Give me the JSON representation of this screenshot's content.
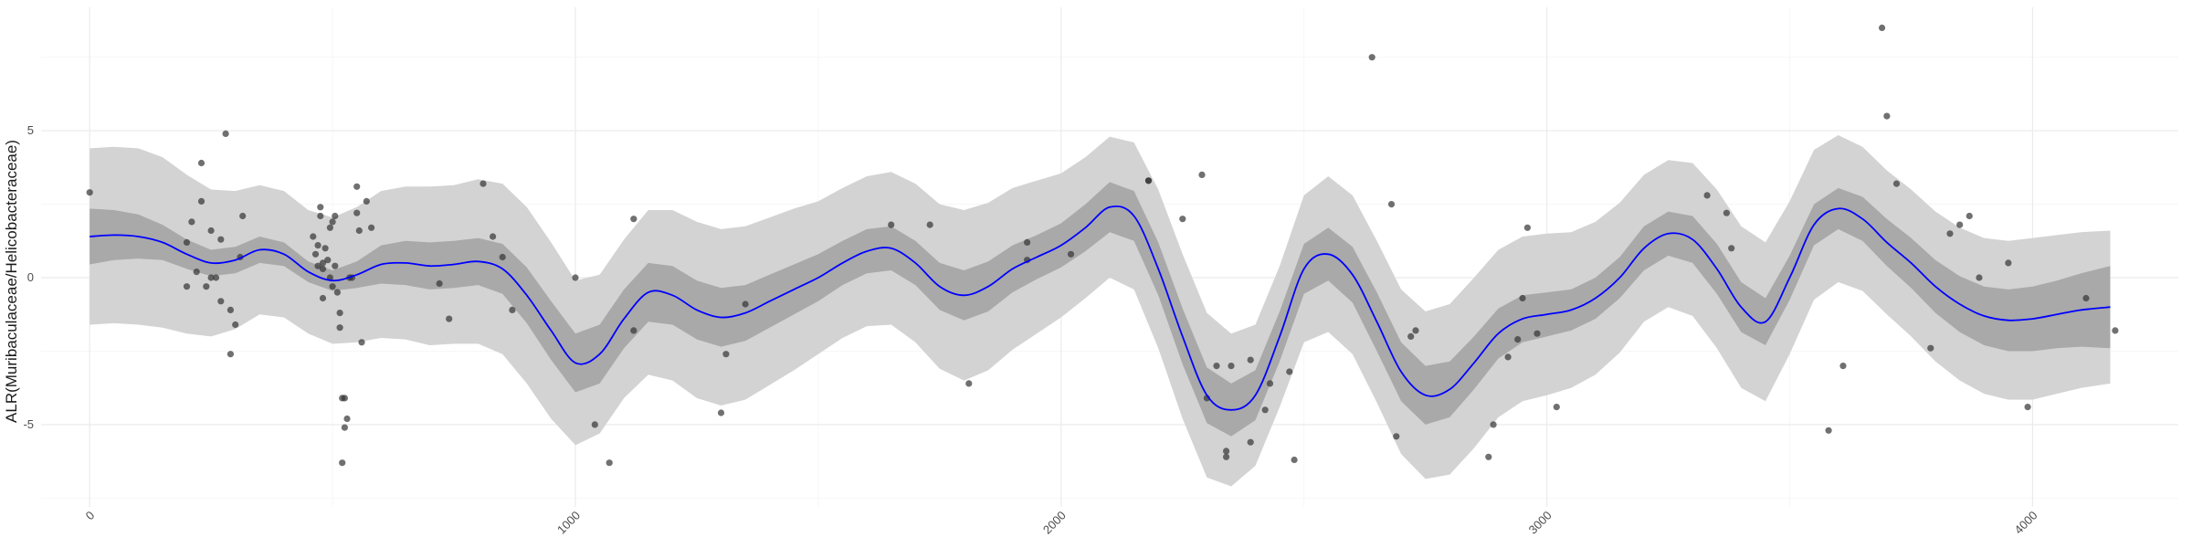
{
  "chart_data": {
    "type": "line",
    "title": "",
    "xlabel": "",
    "ylabel": "ALR(Muribaculaceae/Helicobacteraceae)",
    "xlim": [
      -100,
      4300
    ],
    "ylim": [
      -7.8,
      9.2
    ],
    "x_ticks": [
      0,
      1000,
      2000,
      3000,
      4000
    ],
    "y_ticks": [
      -5,
      0,
      5
    ],
    "x_minor_ticks": [
      500,
      1500,
      2500,
      3500
    ],
    "y_minor_ticks": [
      -7.5,
      -2.5,
      2.5,
      7.5
    ],
    "grid": true,
    "colors": {
      "line": "#0000ff",
      "inner_band": "#a9a9a9",
      "outer_band": "#d3d3d3",
      "points": "#333333"
    },
    "smooth_x": [
      0,
      50,
      100,
      150,
      200,
      250,
      300,
      350,
      400,
      450,
      500,
      550,
      600,
      650,
      700,
      750,
      800,
      850,
      900,
      950,
      1000,
      1050,
      1100,
      1150,
      1200,
      1250,
      1300,
      1350,
      1400,
      1450,
      1500,
      1550,
      1600,
      1650,
      1700,
      1750,
      1800,
      1850,
      1900,
      1950,
      2000,
      2050,
      2100,
      2150,
      2200,
      2250,
      2300,
      2350,
      2400,
      2450,
      2500,
      2550,
      2600,
      2650,
      2700,
      2750,
      2800,
      2850,
      2900,
      2950,
      3000,
      3050,
      3100,
      3150,
      3200,
      3250,
      3300,
      3350,
      3400,
      3450,
      3500,
      3550,
      3600,
      3650,
      3700,
      3750,
      3800,
      3850,
      3900,
      3950,
      4000,
      4050,
      4100,
      4160
    ],
    "smooth_y": [
      1.4,
      1.45,
      1.4,
      1.2,
      0.8,
      0.5,
      0.6,
      0.95,
      0.8,
      0.2,
      -0.1,
      0.1,
      0.45,
      0.5,
      0.4,
      0.45,
      0.55,
      0.3,
      -0.6,
      -1.8,
      -2.9,
      -2.6,
      -1.4,
      -0.5,
      -0.6,
      -1.1,
      -1.35,
      -1.2,
      -0.8,
      -0.4,
      0.0,
      0.5,
      0.9,
      1.0,
      0.5,
      -0.3,
      -0.6,
      -0.3,
      0.3,
      0.7,
      1.1,
      1.7,
      2.4,
      2.1,
      0.3,
      -2.0,
      -4.0,
      -4.5,
      -4.0,
      -2.0,
      0.3,
      0.8,
      0.1,
      -1.5,
      -3.2,
      -4.0,
      -3.8,
      -2.9,
      -1.9,
      -1.4,
      -1.25,
      -1.1,
      -0.7,
      0.0,
      1.0,
      1.5,
      1.3,
      0.3,
      -1.0,
      -1.5,
      0.0,
      1.8,
      2.35,
      2.0,
      1.2,
      0.5,
      -0.3,
      -0.9,
      -1.3,
      -1.45,
      -1.4,
      -1.25,
      -1.1,
      -1.0
    ],
    "inner_half_width": [
      0.95,
      0.85,
      0.75,
      0.6,
      0.5,
      0.45,
      0.45,
      0.45,
      0.4,
      0.35,
      0.35,
      0.45,
      0.65,
      0.75,
      0.8,
      0.8,
      0.8,
      0.85,
      0.95,
      1.0,
      1.0,
      1.0,
      1.0,
      1.0,
      1.0,
      1.0,
      1.0,
      0.95,
      0.9,
      0.85,
      0.8,
      0.75,
      0.75,
      0.75,
      0.75,
      0.8,
      0.85,
      0.85,
      0.8,
      0.75,
      0.75,
      0.8,
      0.85,
      0.85,
      0.9,
      0.95,
      0.95,
      0.9,
      0.85,
      0.85,
      0.85,
      0.9,
      0.95,
      1.0,
      1.0,
      1.0,
      0.95,
      0.9,
      0.85,
      0.8,
      0.75,
      0.7,
      0.7,
      0.7,
      0.75,
      0.75,
      0.8,
      0.85,
      0.85,
      0.8,
      0.75,
      0.7,
      0.7,
      0.75,
      0.8,
      0.85,
      0.9,
      0.95,
      1.0,
      1.05,
      1.1,
      1.15,
      1.25,
      1.4
    ],
    "outer_half_width": [
      3.0,
      3.0,
      3.0,
      2.9,
      2.7,
      2.5,
      2.35,
      2.2,
      2.15,
      2.1,
      2.15,
      2.3,
      2.5,
      2.6,
      2.7,
      2.7,
      2.8,
      2.9,
      3.0,
      3.0,
      2.8,
      2.7,
      2.7,
      2.8,
      2.9,
      3.0,
      3.0,
      2.95,
      2.85,
      2.75,
      2.6,
      2.55,
      2.55,
      2.6,
      2.7,
      2.8,
      2.9,
      2.85,
      2.75,
      2.6,
      2.45,
      2.4,
      2.4,
      2.5,
      2.7,
      2.8,
      2.8,
      2.6,
      2.4,
      2.4,
      2.5,
      2.65,
      2.7,
      2.75,
      2.8,
      2.85,
      2.9,
      2.9,
      2.85,
      2.8,
      2.75,
      2.65,
      2.6,
      2.55,
      2.5,
      2.5,
      2.6,
      2.7,
      2.75,
      2.7,
      2.6,
      2.55,
      2.5,
      2.45,
      2.45,
      2.5,
      2.55,
      2.6,
      2.65,
      2.7,
      2.75,
      2.7,
      2.65,
      2.6
    ],
    "points": [
      [
        0,
        2.9
      ],
      [
        200,
        1.2
      ],
      [
        210,
        1.9
      ],
      [
        230,
        2.6
      ],
      [
        230,
        3.9
      ],
      [
        220,
        0.2
      ],
      [
        200,
        -0.3
      ],
      [
        240,
        -0.3
      ],
      [
        250,
        0.0
      ],
      [
        260,
        0.0
      ],
      [
        250,
        1.6
      ],
      [
        270,
        -0.8
      ],
      [
        270,
        1.3
      ],
      [
        280,
        4.9
      ],
      [
        290,
        -1.1
      ],
      [
        290,
        -2.6
      ],
      [
        300,
        -1.6
      ],
      [
        310,
        0.7
      ],
      [
        315,
        2.1
      ],
      [
        460,
        1.4
      ],
      [
        465,
        0.8
      ],
      [
        470,
        0.4
      ],
      [
        470,
        1.1
      ],
      [
        475,
        2.4
      ],
      [
        475,
        2.1
      ],
      [
        480,
        0.5
      ],
      [
        480,
        -0.7
      ],
      [
        480,
        0.3
      ],
      [
        485,
        1.0
      ],
      [
        490,
        0.6
      ],
      [
        495,
        0.0
      ],
      [
        495,
        1.7
      ],
      [
        500,
        1.9
      ],
      [
        500,
        -0.3
      ],
      [
        505,
        0.4
      ],
      [
        505,
        2.1
      ],
      [
        510,
        -0.5
      ],
      [
        515,
        -1.7
      ],
      [
        515,
        -1.2
      ],
      [
        520,
        -6.3
      ],
      [
        520,
        -4.1
      ],
      [
        525,
        -4.1
      ],
      [
        525,
        -5.1
      ],
      [
        530,
        -4.8
      ],
      [
        535,
        0.0
      ],
      [
        540,
        0.0
      ],
      [
        550,
        2.2
      ],
      [
        555,
        1.6
      ],
      [
        550,
        3.1
      ],
      [
        560,
        -2.2
      ],
      [
        570,
        2.6
      ],
      [
        580,
        1.7
      ],
      [
        720,
        -0.2
      ],
      [
        740,
        -1.4
      ],
      [
        810,
        3.2
      ],
      [
        830,
        1.4
      ],
      [
        850,
        0.7
      ],
      [
        870,
        -1.1
      ],
      [
        1000,
        0.0
      ],
      [
        1040,
        -5.0
      ],
      [
        1070,
        -6.3
      ],
      [
        1120,
        -1.8
      ],
      [
        1120,
        2.0
      ],
      [
        1300,
        -4.6
      ],
      [
        1310,
        -2.6
      ],
      [
        1350,
        -0.9
      ],
      [
        1650,
        1.8
      ],
      [
        1730,
        1.8
      ],
      [
        1810,
        -3.6
      ],
      [
        1930,
        0.6
      ],
      [
        1930,
        1.2
      ],
      [
        2020,
        0.8
      ],
      [
        2180,
        3.3
      ],
      [
        2180,
        3.3
      ],
      [
        2250,
        2.0
      ],
      [
        2290,
        3.5
      ],
      [
        2300,
        -4.1
      ],
      [
        2320,
        -3.0
      ],
      [
        2340,
        -5.9
      ],
      [
        2340,
        -6.1
      ],
      [
        2350,
        -3.0
      ],
      [
        2390,
        -5.6
      ],
      [
        2390,
        -2.8
      ],
      [
        2420,
        -4.5
      ],
      [
        2430,
        -3.6
      ],
      [
        2470,
        -3.2
      ],
      [
        2480,
        -6.2
      ],
      [
        2640,
        7.5
      ],
      [
        2680,
        2.5
      ],
      [
        2690,
        -5.4
      ],
      [
        2720,
        -2.0
      ],
      [
        2730,
        -1.8
      ],
      [
        2880,
        -6.1
      ],
      [
        2890,
        -5.0
      ],
      [
        2920,
        -2.7
      ],
      [
        2940,
        -2.1
      ],
      [
        2950,
        -0.7
      ],
      [
        2960,
        1.7
      ],
      [
        2980,
        -1.9
      ],
      [
        3020,
        -4.4
      ],
      [
        3330,
        2.8
      ],
      [
        3370,
        2.2
      ],
      [
        3380,
        1.0
      ],
      [
        3580,
        -5.2
      ],
      [
        3610,
        -3.0
      ],
      [
        3690,
        8.5
      ],
      [
        3720,
        3.2
      ],
      [
        3700,
        5.5
      ],
      [
        3790,
        -2.4
      ],
      [
        3830,
        1.5
      ],
      [
        3850,
        1.8
      ],
      [
        3870,
        2.1
      ],
      [
        3890,
        0.0
      ],
      [
        3950,
        0.5
      ],
      [
        3990,
        -4.4
      ],
      [
        4110,
        -0.7
      ],
      [
        4170,
        -1.8
      ]
    ]
  }
}
